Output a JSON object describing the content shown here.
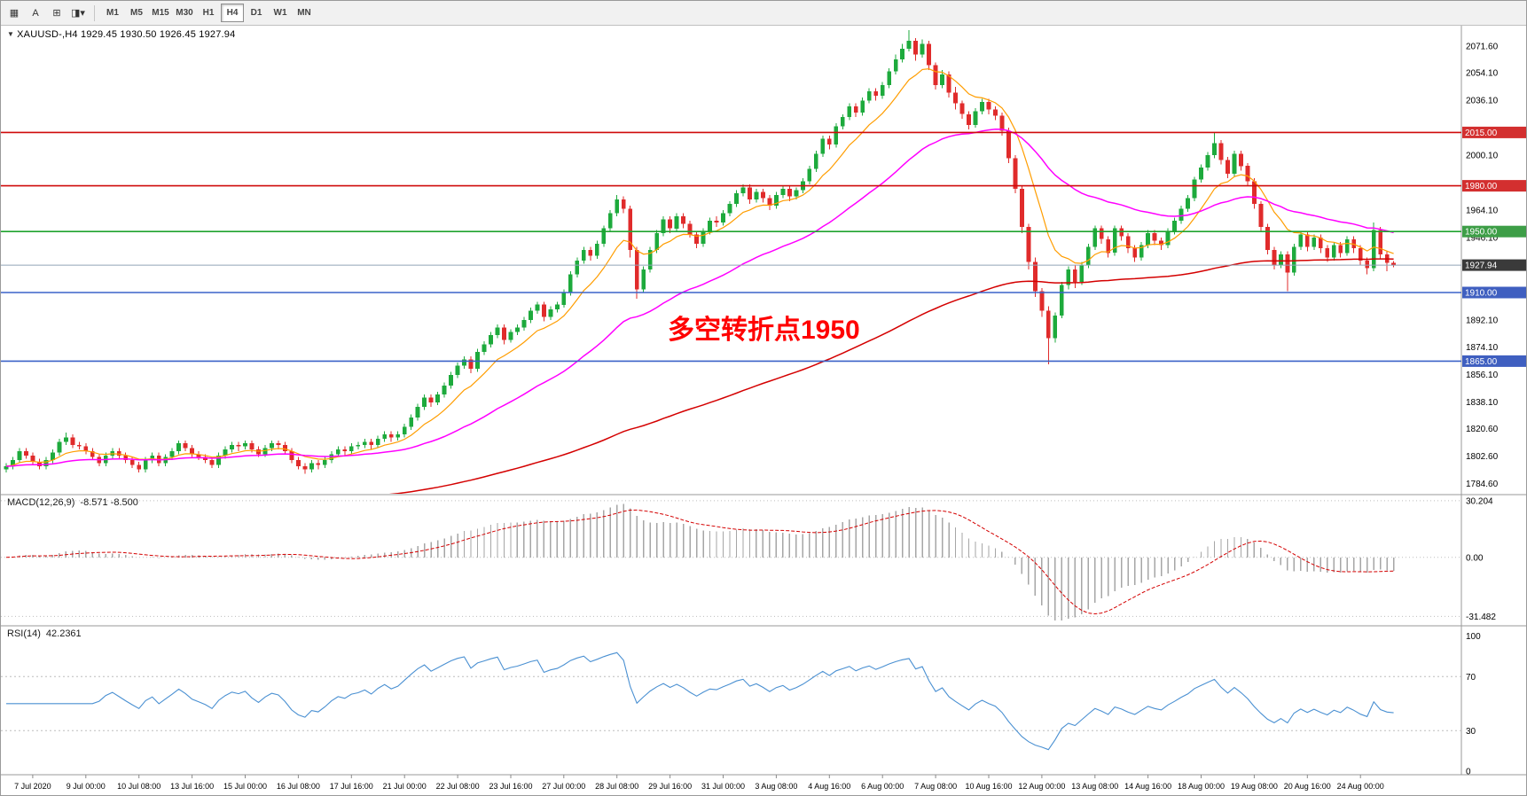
{
  "toolbar": {
    "tools": [
      {
        "name": "chart-icon",
        "glyph": "▦"
      },
      {
        "name": "font-tool-icon",
        "glyph": "A"
      },
      {
        "name": "chart-type-icon",
        "glyph": "⊞"
      },
      {
        "name": "template-dropdown-icon",
        "glyph": "◨▾"
      }
    ],
    "timeframes": [
      "M1",
      "M5",
      "M15",
      "M30",
      "H1",
      "H4",
      "D1",
      "W1",
      "MN"
    ],
    "active_timeframe": "H4"
  },
  "quote": {
    "dropdown_glyph": "▼",
    "symbol": "XAUUSD-,H4",
    "ohlc": "1929.45 1930.50 1926.45 1927.94"
  },
  "annotation": {
    "text": "多空转折点1950",
    "color": "#ff0000"
  },
  "chart_data": {
    "type": "candlestick",
    "symbol": "XAUUSD",
    "timeframe": "H4",
    "price_range": [
      1778,
      2085
    ],
    "colors": {
      "bull": "#1daa3c",
      "bear": "#e02b2b"
    },
    "candles": [
      [
        1794,
        1798,
        1792,
        1796
      ],
      [
        1796,
        1802,
        1794,
        1800
      ],
      [
        1800,
        1808,
        1798,
        1806
      ],
      [
        1806,
        1808,
        1801,
        1803
      ],
      [
        1803,
        1805,
        1797,
        1799
      ],
      [
        1799,
        1801,
        1794,
        1796
      ],
      [
        1796,
        1802,
        1794,
        1800
      ],
      [
        1800,
        1807,
        1798,
        1805
      ],
      [
        1805,
        1814,
        1803,
        1812
      ],
      [
        1812,
        1818,
        1810,
        1815
      ],
      [
        1815,
        1817,
        1808,
        1810
      ],
      [
        1810,
        1812,
        1807,
        1809
      ],
      [
        1809,
        1811,
        1804,
        1806
      ],
      [
        1806,
        1808,
        1800,
        1802
      ],
      [
        1802,
        1804,
        1796,
        1798
      ],
      [
        1798,
        1805,
        1796,
        1803
      ],
      [
        1803,
        1808,
        1801,
        1806
      ],
      [
        1806,
        1808,
        1801,
        1803
      ],
      [
        1803,
        1805,
        1798,
        1800
      ],
      [
        1800,
        1802,
        1795,
        1797
      ],
      [
        1797,
        1799,
        1792,
        1794
      ],
      [
        1794,
        1802,
        1792,
        1800
      ],
      [
        1800,
        1805,
        1798,
        1803
      ],
      [
        1803,
        1805,
        1796,
        1798
      ],
      [
        1798,
        1804,
        1796,
        1802
      ],
      [
        1802,
        1808,
        1800,
        1806
      ],
      [
        1806,
        1813,
        1804,
        1811
      ],
      [
        1811,
        1813,
        1806,
        1808
      ],
      [
        1808,
        1810,
        1802,
        1804
      ],
      [
        1804,
        1806,
        1800,
        1802
      ],
      [
        1802,
        1804,
        1798,
        1800
      ],
      [
        1800,
        1802,
        1795,
        1797
      ],
      [
        1797,
        1805,
        1795,
        1803
      ],
      [
        1803,
        1809,
        1801,
        1807
      ],
      [
        1807,
        1812,
        1805,
        1810
      ],
      [
        1810,
        1812,
        1806,
        1809
      ],
      [
        1809,
        1813,
        1807,
        1811
      ],
      [
        1811,
        1813,
        1805,
        1807
      ],
      [
        1807,
        1809,
        1802,
        1804
      ],
      [
        1804,
        1810,
        1802,
        1808
      ],
      [
        1808,
        1813,
        1806,
        1811
      ],
      [
        1811,
        1813,
        1807,
        1810
      ],
      [
        1810,
        1812,
        1804,
        1806
      ],
      [
        1806,
        1808,
        1798,
        1800
      ],
      [
        1800,
        1802,
        1794,
        1796
      ],
      [
        1796,
        1798,
        1791,
        1794
      ],
      [
        1794,
        1800,
        1792,
        1798
      ],
      [
        1798,
        1800,
        1794,
        1797
      ],
      [
        1797,
        1802,
        1795,
        1800
      ],
      [
        1800,
        1806,
        1798,
        1804
      ],
      [
        1804,
        1809,
        1802,
        1807
      ],
      [
        1807,
        1809,
        1803,
        1806
      ],
      [
        1806,
        1811,
        1804,
        1809
      ],
      [
        1809,
        1812,
        1807,
        1810
      ],
      [
        1810,
        1814,
        1808,
        1812
      ],
      [
        1812,
        1814,
        1807,
        1810
      ],
      [
        1810,
        1816,
        1808,
        1814
      ],
      [
        1814,
        1819,
        1812,
        1817
      ],
      [
        1817,
        1819,
        1812,
        1815
      ],
      [
        1815,
        1819,
        1813,
        1817
      ],
      [
        1817,
        1824,
        1815,
        1822
      ],
      [
        1822,
        1830,
        1820,
        1828
      ],
      [
        1828,
        1837,
        1826,
        1835
      ],
      [
        1835,
        1843,
        1833,
        1841
      ],
      [
        1841,
        1843,
        1835,
        1838
      ],
      [
        1838,
        1845,
        1836,
        1843
      ],
      [
        1843,
        1851,
        1841,
        1849
      ],
      [
        1849,
        1858,
        1847,
        1856
      ],
      [
        1856,
        1864,
        1854,
        1862
      ],
      [
        1862,
        1868,
        1860,
        1866
      ],
      [
        1866,
        1868,
        1857,
        1860
      ],
      [
        1860,
        1873,
        1858,
        1871
      ],
      [
        1871,
        1878,
        1869,
        1876
      ],
      [
        1876,
        1884,
        1874,
        1882
      ],
      [
        1882,
        1889,
        1880,
        1887
      ],
      [
        1887,
        1889,
        1876,
        1879
      ],
      [
        1879,
        1886,
        1877,
        1884
      ],
      [
        1884,
        1889,
        1882,
        1887
      ],
      [
        1887,
        1894,
        1885,
        1892
      ],
      [
        1892,
        1900,
        1890,
        1898
      ],
      [
        1898,
        1904,
        1896,
        1902
      ],
      [
        1902,
        1904,
        1891,
        1894
      ],
      [
        1894,
        1901,
        1892,
        1899
      ],
      [
        1899,
        1904,
        1897,
        1902
      ],
      [
        1902,
        1912,
        1900,
        1910
      ],
      [
        1910,
        1924,
        1908,
        1922
      ],
      [
        1922,
        1933,
        1920,
        1931
      ],
      [
        1931,
        1940,
        1929,
        1938
      ],
      [
        1938,
        1940,
        1931,
        1934
      ],
      [
        1934,
        1944,
        1932,
        1942
      ],
      [
        1942,
        1954,
        1940,
        1952
      ],
      [
        1952,
        1964,
        1950,
        1962
      ],
      [
        1962,
        1974,
        1960,
        1971
      ],
      [
        1971,
        1973,
        1962,
        1965
      ],
      [
        1965,
        1967,
        1933,
        1938
      ],
      [
        1938,
        1940,
        1906,
        1912
      ],
      [
        1912,
        1927,
        1910,
        1925
      ],
      [
        1925,
        1940,
        1923,
        1938
      ],
      [
        1938,
        1951,
        1936,
        1949
      ],
      [
        1949,
        1960,
        1947,
        1958
      ],
      [
        1958,
        1960,
        1949,
        1952
      ],
      [
        1952,
        1962,
        1950,
        1960
      ],
      [
        1960,
        1962,
        1952,
        1955
      ],
      [
        1955,
        1957,
        1946,
        1948
      ],
      [
        1948,
        1950,
        1939,
        1942
      ],
      [
        1942,
        1952,
        1940,
        1950
      ],
      [
        1950,
        1959,
        1948,
        1957
      ],
      [
        1957,
        1960,
        1953,
        1956
      ],
      [
        1956,
        1964,
        1954,
        1962
      ],
      [
        1962,
        1970,
        1960,
        1968
      ],
      [
        1968,
        1977,
        1966,
        1975
      ],
      [
        1975,
        1981,
        1973,
        1979
      ],
      [
        1979,
        1981,
        1968,
        1971
      ],
      [
        1971,
        1978,
        1969,
        1976
      ],
      [
        1976,
        1978,
        1969,
        1972
      ],
      [
        1972,
        1974,
        1964,
        1967
      ],
      [
        1967,
        1976,
        1965,
        1974
      ],
      [
        1974,
        1980,
        1972,
        1978
      ],
      [
        1978,
        1980,
        1970,
        1973
      ],
      [
        1973,
        1979,
        1971,
        1977
      ],
      [
        1977,
        1985,
        1975,
        1983
      ],
      [
        1983,
        1993,
        1981,
        1991
      ],
      [
        1991,
        2003,
        1989,
        2001
      ],
      [
        2001,
        2013,
        1999,
        2011
      ],
      [
        2011,
        2013,
        2004,
        2007
      ],
      [
        2007,
        2021,
        2005,
        2019
      ],
      [
        2019,
        2027,
        2017,
        2025
      ],
      [
        2025,
        2034,
        2023,
        2032
      ],
      [
        2032,
        2034,
        2025,
        2028
      ],
      [
        2028,
        2038,
        2026,
        2036
      ],
      [
        2036,
        2044,
        2034,
        2042
      ],
      [
        2042,
        2044,
        2036,
        2039
      ],
      [
        2039,
        2048,
        2037,
        2046
      ],
      [
        2046,
        2057,
        2044,
        2055
      ],
      [
        2055,
        2066,
        2053,
        2063
      ],
      [
        2063,
        2073,
        2061,
        2070
      ],
      [
        2070,
        2082,
        2068,
        2075
      ],
      [
        2075,
        2077,
        2062,
        2066
      ],
      [
        2066,
        2076,
        2064,
        2073
      ],
      [
        2073,
        2075,
        2056,
        2059
      ],
      [
        2059,
        2061,
        2043,
        2046
      ],
      [
        2046,
        2056,
        2044,
        2053
      ],
      [
        2053,
        2055,
        2038,
        2041
      ],
      [
        2041,
        2045,
        2030,
        2034
      ],
      [
        2034,
        2036,
        2024,
        2027
      ],
      [
        2027,
        2029,
        2017,
        2020
      ],
      [
        2020,
        2031,
        2018,
        2029
      ],
      [
        2029,
        2037,
        2027,
        2035
      ],
      [
        2035,
        2037,
        2027,
        2030
      ],
      [
        2030,
        2032,
        2023,
        2026
      ],
      [
        2026,
        2028,
        2013,
        2016
      ],
      [
        2016,
        2018,
        1995,
        1998
      ],
      [
        1998,
        2000,
        1975,
        1978
      ],
      [
        1978,
        1980,
        1949,
        1953
      ],
      [
        1953,
        1955,
        1925,
        1930
      ],
      [
        1930,
        1933,
        1907,
        1911
      ],
      [
        1911,
        1913,
        1894,
        1898
      ],
      [
        1898,
        1901,
        1863,
        1880
      ],
      [
        1880,
        1897,
        1877,
        1895
      ],
      [
        1895,
        1917,
        1893,
        1915
      ],
      [
        1915,
        1927,
        1912,
        1925
      ],
      [
        1925,
        1928,
        1913,
        1917
      ],
      [
        1917,
        1930,
        1915,
        1928
      ],
      [
        1928,
        1942,
        1926,
        1940
      ],
      [
        1940,
        1954,
        1938,
        1952
      ],
      [
        1952,
        1954,
        1942,
        1945
      ],
      [
        1945,
        1947,
        1933,
        1936
      ],
      [
        1936,
        1954,
        1934,
        1952
      ],
      [
        1952,
        1954,
        1944,
        1947
      ],
      [
        1947,
        1949,
        1936,
        1939
      ],
      [
        1939,
        1941,
        1930,
        1933
      ],
      [
        1933,
        1943,
        1931,
        1941
      ],
      [
        1941,
        1951,
        1939,
        1949
      ],
      [
        1949,
        1951,
        1941,
        1944
      ],
      [
        1944,
        1946,
        1938,
        1941
      ],
      [
        1941,
        1952,
        1939,
        1950
      ],
      [
        1950,
        1959,
        1948,
        1957
      ],
      [
        1957,
        1967,
        1955,
        1965
      ],
      [
        1965,
        1974,
        1963,
        1972
      ],
      [
        1972,
        1986,
        1970,
        1984
      ],
      [
        1984,
        1994,
        1982,
        1992
      ],
      [
        1992,
        2002,
        1990,
        2000
      ],
      [
        2000,
        2015,
        1998,
        2008
      ],
      [
        2008,
        2010,
        1994,
        1997
      ],
      [
        1997,
        1999,
        1985,
        1988
      ],
      [
        1988,
        2003,
        1986,
        2001
      ],
      [
        2001,
        2003,
        1990,
        1993
      ],
      [
        1993,
        1995,
        1980,
        1983
      ],
      [
        1983,
        1985,
        1965,
        1968
      ],
      [
        1968,
        1970,
        1950,
        1953
      ],
      [
        1953,
        1955,
        1935,
        1938
      ],
      [
        1938,
        1940,
        1925,
        1928
      ],
      [
        1928,
        1937,
        1926,
        1935
      ],
      [
        1935,
        1937,
        1911,
        1923
      ],
      [
        1923,
        1942,
        1921,
        1940
      ],
      [
        1940,
        1950,
        1938,
        1948
      ],
      [
        1948,
        1950,
        1937,
        1940
      ],
      [
        1940,
        1948,
        1938,
        1946
      ],
      [
        1946,
        1948,
        1936,
        1939
      ],
      [
        1939,
        1941,
        1930,
        1933
      ],
      [
        1933,
        1943,
        1931,
        1941
      ],
      [
        1941,
        1943,
        1933,
        1936
      ],
      [
        1936,
        1947,
        1934,
        1945
      ],
      [
        1945,
        1947,
        1936,
        1939
      ],
      [
        1939,
        1941,
        1928,
        1931
      ],
      [
        1931,
        1933,
        1922,
        1926
      ],
      [
        1926,
        1956,
        1924,
        1951
      ],
      [
        1951,
        1953,
        1932,
        1935
      ],
      [
        1935,
        1937,
        1924,
        1929.45
      ],
      [
        1929.45,
        1930.5,
        1926.45,
        1927.94
      ]
    ],
    "overlays": [
      {
        "name": "ma-fast",
        "period": 10,
        "seed": null,
        "color": "#ff9d00",
        "width": 1.2
      },
      {
        "name": "ma-mid",
        "period": 40,
        "seed": null,
        "color": "#ff00ff",
        "width": 1.5
      },
      {
        "name": "ma-slow",
        "period": 160,
        "seed": 1748,
        "color": "#d40000",
        "width": 1.5
      }
    ],
    "levels": [
      {
        "value": 2015.0,
        "label": "2015.00",
        "line_color": "#cf0a0a",
        "badge_color": "#d32f2f"
      },
      {
        "value": 1980.0,
        "label": "1980.00",
        "line_color": "#cf0a0a",
        "badge_color": "#d32f2f"
      },
      {
        "value": 1950.0,
        "label": "1950.00",
        "line_color": "#1fa32e",
        "badge_color": "#3d9e47"
      },
      {
        "value": 1910.0,
        "label": "1910.00",
        "line_color": "#3a62c8",
        "badge_color": "#3f5fc0"
      },
      {
        "value": 1865.0,
        "label": "1865.00",
        "line_color": "#3a62c8",
        "badge_color": "#3f5fc0"
      }
    ],
    "current_price": {
      "value": 1927.94,
      "label": "1927.94",
      "line_color": "#90a4b8",
      "badge_color": "#3a3a3a"
    },
    "price_axis_ticks": [
      "2071.60",
      "2054.10",
      "2036.10",
      "2000.10",
      "1964.10",
      "1946.10",
      "1892.10",
      "1874.10",
      "1856.10",
      "1838.10",
      "1820.60",
      "1802.60",
      "1784.60"
    ],
    "time_axis": {
      "start_index": 4,
      "step": 8,
      "labels": [
        "7 Jul 2020",
        "9 Jul 00:00",
        "10 Jul 08:00",
        "13 Jul 16:00",
        "15 Jul 00:00",
        "16 Jul 08:00",
        "17 Jul 16:00",
        "21 Jul 00:00",
        "22 Jul 08:00",
        "23 Jul 16:00",
        "27 Jul 00:00",
        "28 Jul 08:00",
        "29 Jul 16:00",
        "31 Jul 00:00",
        "3 Aug 08:00",
        "4 Aug 16:00",
        "6 Aug 00:00",
        "7 Aug 08:00",
        "10 Aug 16:00",
        "12 Aug 00:00",
        "13 Aug 08:00",
        "14 Aug 16:00",
        "18 Aug 00:00",
        "19 Aug 08:00",
        "20 Aug 16:00",
        "24 Aug 00:00"
      ]
    },
    "indicators": {
      "macd": {
        "label": "MACD(12,26,9)",
        "values": "-8.571 -8.500",
        "fast": 12,
        "slow": 26,
        "signal": 9,
        "axis": [
          "30.204",
          "0.00",
          "-31.482"
        ],
        "range": [
          -36,
          33
        ],
        "hist_color": "#a6a6a6",
        "signal_color": "#d40000"
      },
      "rsi": {
        "label": "RSI(14)",
        "value": "42.2361",
        "period": 14,
        "axis": [
          "100",
          "70",
          "30",
          "0"
        ],
        "dash_levels": [
          70,
          30
        ],
        "range": [
          -2,
          107
        ],
        "color": "#4a90d2"
      }
    }
  }
}
